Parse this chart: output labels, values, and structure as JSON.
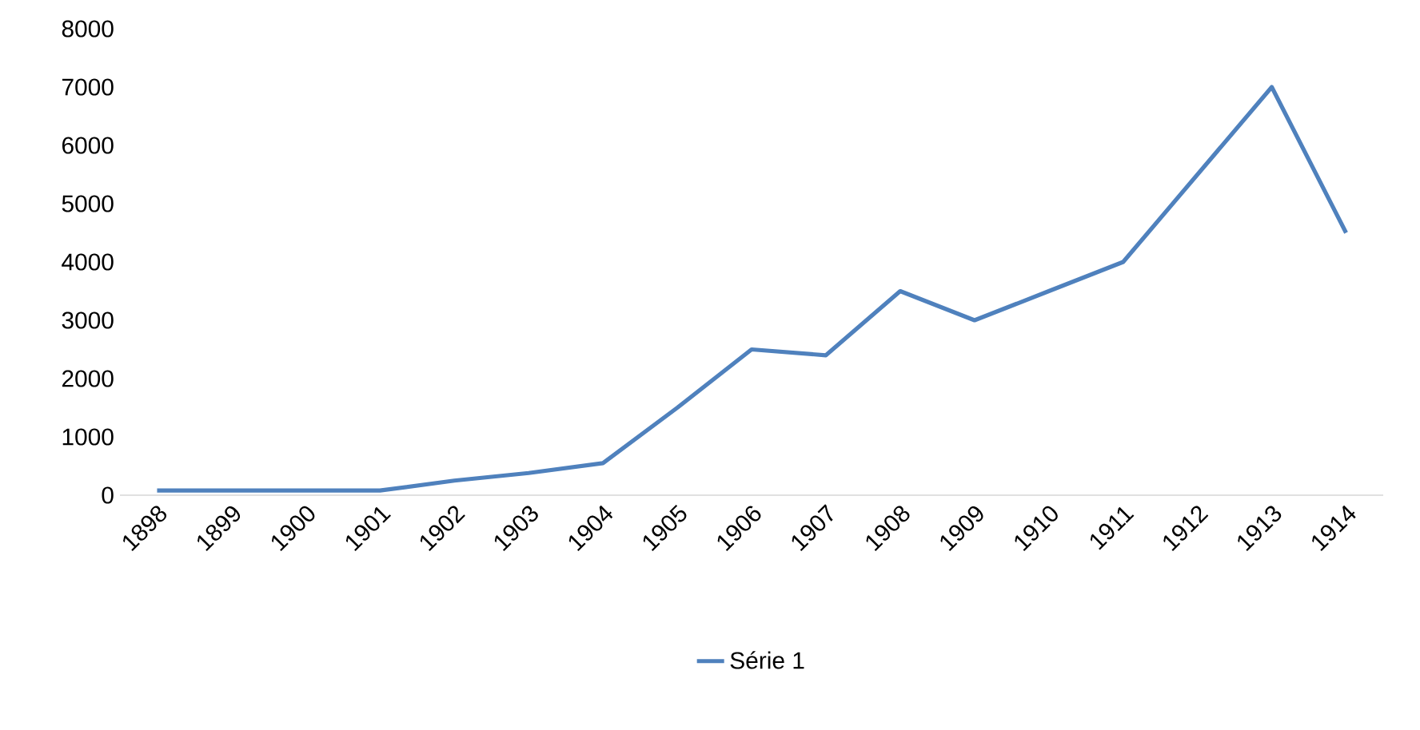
{
  "chart_data": {
    "type": "line",
    "categories": [
      "1898",
      "1899",
      "1900",
      "1901",
      "1902",
      "1903",
      "1904",
      "1905",
      "1906",
      "1907",
      "1908",
      "1909",
      "1910",
      "1911",
      "1912",
      "1913",
      "1914"
    ],
    "series": [
      {
        "name": "Série 1",
        "color": "#4f81bd",
        "values": [
          80,
          80,
          80,
          80,
          250,
          380,
          550,
          1500,
          2500,
          2400,
          3500,
          3000,
          3500,
          4000,
          5500,
          7000,
          4500
        ]
      }
    ],
    "ylim": [
      0,
      8000
    ],
    "yticks": [
      0,
      1000,
      2000,
      3000,
      4000,
      5000,
      6000,
      7000,
      8000
    ],
    "legend": "bottom",
    "grid": false,
    "marker": "none",
    "line_style": "solid"
  }
}
